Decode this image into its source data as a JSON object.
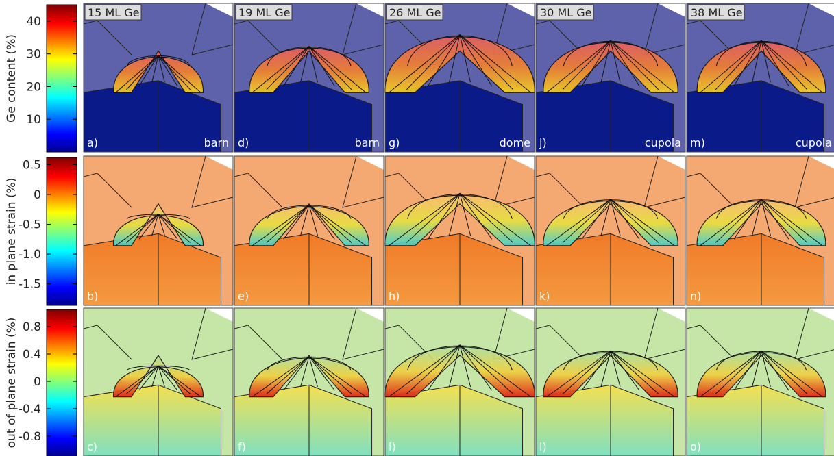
{
  "colorbars": [
    {
      "label": "Ge content (%)",
      "lim": [
        0,
        45
      ],
      "ticks": [
        10,
        20,
        30,
        40
      ]
    },
    {
      "label": "in plane strain (%)",
      "lim": [
        -1.86,
        0.62
      ],
      "ticks": [
        0.5,
        0,
        -0.5,
        {
          "value": -1,
          "label": "-1.0"
        },
        -1.5
      ]
    },
    {
      "label": "out of plane strain (%)",
      "lim": [
        -1.09,
        1.05
      ],
      "ticks": [
        0.8,
        0.4,
        0,
        -0.4,
        -0.8
      ]
    }
  ],
  "columns": [
    {
      "header": "15 ML Ge",
      "shape": "barn",
      "panels": [
        "a)",
        "b)",
        "c)"
      ]
    },
    {
      "header": "19 ML Ge",
      "shape": "barn",
      "panels": [
        "d)",
        "e)",
        "f)"
      ]
    },
    {
      "header": "26 ML Ge",
      "shape": "dome",
      "panels": [
        "g)",
        "h)",
        "i)"
      ]
    },
    {
      "header": "30 ML Ge",
      "shape": "cupola",
      "panels": [
        "j)",
        "k)",
        "l)"
      ]
    },
    {
      "header": "38 ML Ge",
      "shape": "cupola",
      "panels": [
        "m)",
        "n)",
        "o)"
      ]
    }
  ]
}
